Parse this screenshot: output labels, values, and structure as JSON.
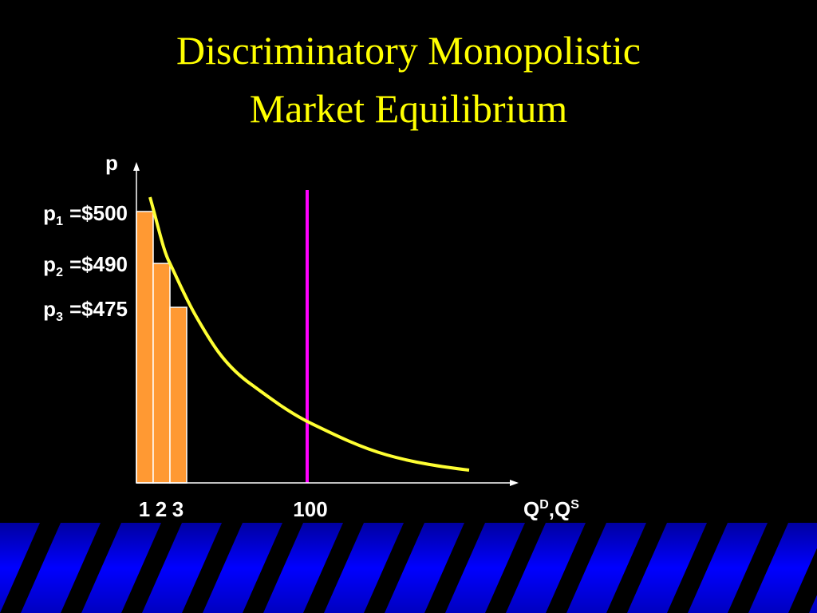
{
  "title": {
    "lines": [
      "Discriminatory Monopolistic",
      "Market Equilibrium"
    ]
  },
  "y_axis": {
    "label": "p",
    "price_labels": [
      {
        "symbol": "p",
        "subscript": "1",
        "text": "=$500"
      },
      {
        "symbol": "p",
        "subscript": "2",
        "text": "=$490"
      },
      {
        "symbol": "p",
        "subscript": "3",
        "text": "=$475"
      }
    ]
  },
  "x_axis": {
    "quantity_labels": [
      "1",
      "2",
      "3",
      "100"
    ],
    "label": {
      "parts": [
        "Q",
        "D",
        ",Q",
        "S"
      ]
    }
  }
}
